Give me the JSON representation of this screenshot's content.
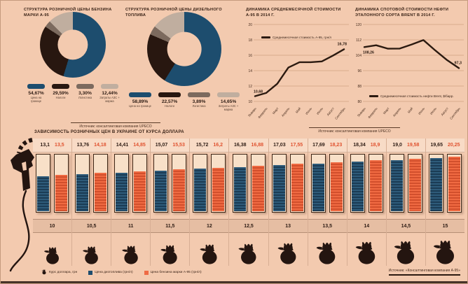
{
  "sources": {
    "upeco": "Источник: консалтинговая компания UPECO",
    "a95": "Источник: «Консалтинговая компания А-95»"
  },
  "colors": {
    "background": "#f3caaf",
    "blue": "#1d4d6e",
    "dark_brown": "#281710",
    "taupe": "#7c6a5e",
    "tan": "#c0ae9f",
    "orange": "#ee6a45",
    "red_text": "#e0522f",
    "line": "#2b1a10"
  },
  "chart_data": [
    {
      "type": "pie",
      "id": "donut-a95",
      "title": "СТРУКТУРА РОЗНИЧНОЙ ЦЕНЫ БЕНЗИНА МАРКИ А-95",
      "labels": [
        "Цена на границе",
        "Налоги",
        "Логистика",
        "Затраты АЗС + маржа"
      ],
      "values": [
        54.67,
        29.59,
        3.3,
        12.44
      ],
      "display_pcts": [
        "54,67%",
        "29,59%",
        "3,30%",
        "12,44%"
      ],
      "colors": [
        "#1d4d6e",
        "#281710",
        "#7c6a5e",
        "#c0ae9f"
      ]
    },
    {
      "type": "pie",
      "id": "donut-diesel",
      "title": "СТРУКТУРА РОЗНИЧНОЙ ЦЕНЫ ДИЗЕЛЬНОГО ТОПЛИВА",
      "labels": [
        "Цена на границе",
        "Налоги",
        "Логистика",
        "Затраты АЗС + маржа"
      ],
      "values": [
        58.89,
        22.57,
        3.89,
        14.65
      ],
      "display_pcts": [
        "58,89%",
        "22,57%",
        "3,89%",
        "14,65%"
      ],
      "colors": [
        "#1d4d6e",
        "#281710",
        "#7c6a5e",
        "#c0ae9f"
      ]
    },
    {
      "type": "line",
      "id": "a95-monthly",
      "title": "ДИНАМИКА СРЕДНЕМЕСЯЧНОЙ СТОИМОСТИ А-95 В 2014 г.",
      "legend": "Среднемесячная стоимость А-95, грн/л",
      "x": [
        "Январь",
        "Февраль",
        "Март",
        "Апрель",
        "Май",
        "Июнь",
        "Июль",
        "Август",
        "Сентябрь"
      ],
      "values": [
        10.68,
        11.1,
        12.3,
        14.4,
        15.1,
        15.1,
        15.2,
        15.95,
        16.78
      ],
      "ylim": [
        10,
        20
      ],
      "yticks": [
        10,
        12,
        14,
        16,
        18,
        20
      ],
      "first_label": "10,68",
      "first_label_pos": "above",
      "last_label": "16,78"
    },
    {
      "type": "line",
      "id": "brent-spot",
      "title": "ДИНАМИКА СПОТОВОЙ СТОИМОСТИ НЕФТИ ЭТАЛОННОГО СОРТА BRENT В 2014 г.",
      "legend": "Среднемесячная стоимость нефти Brent, $/барр.",
      "x": [
        "Январь",
        "Февраль",
        "Март",
        "Апрель",
        "Май",
        "Июнь",
        "Июль",
        "Август",
        "Сентябрь"
      ],
      "values": [
        108.26,
        109.2,
        107.4,
        107.5,
        109.6,
        111.9,
        106.5,
        101.5,
        97.3
      ],
      "ylim": [
        80,
        120
      ],
      "yticks": [
        80,
        88,
        96,
        104,
        112,
        120
      ],
      "first_label": "108,26",
      "first_label_pos": "below",
      "last_label": "97,3"
    },
    {
      "type": "bar",
      "id": "usd-dependency",
      "title": "ЗАВИСИМОСТЬ РОЗНИЧНЫХ ЦЕН В УКРАИНЕ ОТ КУРСА ДОЛЛАРА",
      "xlabel": "Курс доллара, грн",
      "categories": [
        "10",
        "10,5",
        "11",
        "11,5",
        "12",
        "12,5",
        "13",
        "13,5",
        "14",
        "14,5",
        "15"
      ],
      "ymax": 20.25,
      "series": [
        {
          "name": "Цена дизтоплива (грн/л)",
          "color": "#1d4d6e",
          "values": [
            13.1,
            13.76,
            14.41,
            15.07,
            15.72,
            16.38,
            17.03,
            17.69,
            18.34,
            19.0,
            19.65
          ],
          "display": [
            "13,1",
            "13,76",
            "14,41",
            "15,07",
            "15,72",
            "16,38",
            "17,03",
            "17,69",
            "18,34",
            "19,0",
            "19,65"
          ]
        },
        {
          "name": "Цена бензина марки А-95 (грн/л)",
          "color": "#ee6a45",
          "values": [
            13.5,
            14.18,
            14.85,
            15.53,
            16.2,
            16.88,
            17.55,
            18.23,
            18.9,
            19.58,
            20.25
          ],
          "display": [
            "13,5",
            "14,18",
            "14,85",
            "15,53",
            "16,2",
            "16,88",
            "17,55",
            "18,23",
            "18,9",
            "19,58",
            "20,25"
          ]
        }
      ],
      "legend": [
        {
          "icon": "money-bag",
          "label": "Курс доллара, грн"
        },
        {
          "swatch": "#1d4d6e",
          "label": "Цена дизтоплива (грн/л)"
        },
        {
          "swatch": "#ee6a45",
          "label": "Цена бензина марки А-95 (грн/л)"
        }
      ]
    }
  ]
}
